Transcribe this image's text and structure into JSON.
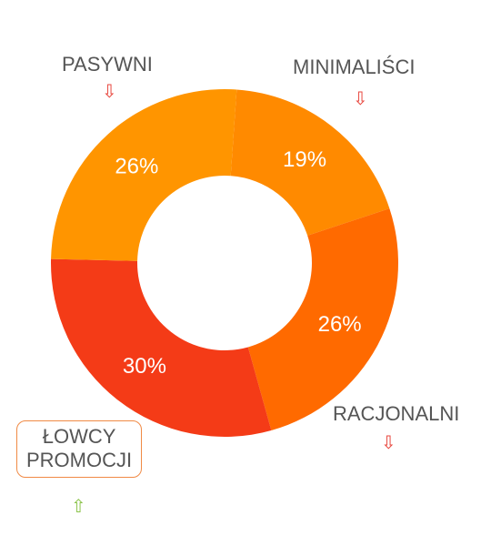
{
  "chart_data": {
    "type": "pie",
    "donut": true,
    "segments": [
      {
        "label": "MINIMALIŚCI",
        "value": 19,
        "display": "19%",
        "color": "#FF8A00",
        "trend": "down"
      },
      {
        "label": "RACJONALNI",
        "value": 26,
        "display": "26%",
        "color": "#FF6A00",
        "trend": "down"
      },
      {
        "label": "ŁOWCY PROMOCJI",
        "value": 30,
        "display": "30%",
        "color": "#F43B17",
        "trend": "up",
        "highlighted": true
      },
      {
        "label": "PASYWNI",
        "value": 26,
        "display": "26%",
        "color": "#FF9500",
        "trend": "down"
      }
    ],
    "trend_colors": {
      "down": "#E8453C",
      "up": "#8BC34A"
    },
    "trend_icons": {
      "down": "arrow-down-icon",
      "up": "arrow-up-icon"
    }
  }
}
